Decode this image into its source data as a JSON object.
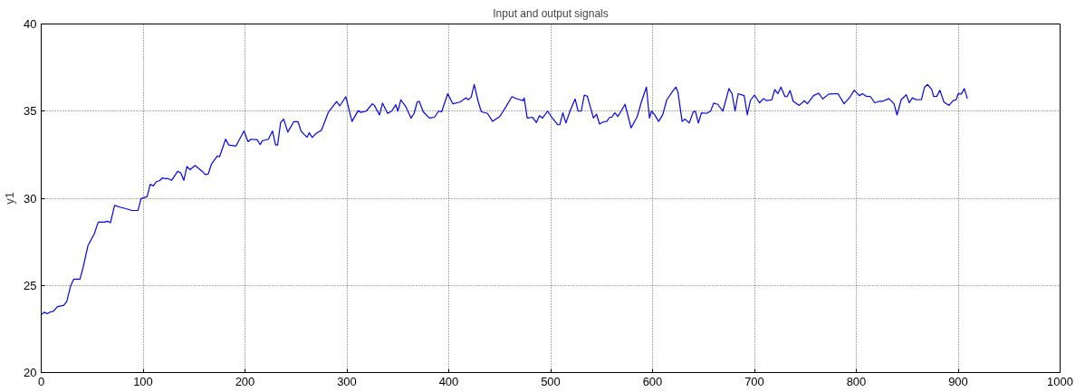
{
  "chart_data": {
    "type": "line",
    "title": "Input and output signals",
    "ylabel": "y1",
    "xlim": [
      0,
      1000
    ],
    "xticks": [
      0,
      100,
      200,
      300,
      400,
      500,
      600,
      700,
      800,
      900,
      1000
    ],
    "ylim": [
      20,
      40
    ],
    "yticks": [
      20,
      25,
      30,
      35,
      40
    ],
    "grid": true,
    "line_style": "solid",
    "series": [
      {
        "color": "#0000ff",
        "x": [
          0,
          3,
          6,
          9,
          12,
          16,
          22,
          25,
          29,
          32,
          38,
          41,
          46,
          52,
          56,
          62,
          65,
          68,
          72,
          78,
          84,
          89,
          95,
          98,
          104,
          107,
          110,
          113,
          116,
          119,
          122,
          124,
          128,
          134,
          137,
          140,
          143,
          146,
          151,
          158,
          161,
          164,
          167,
          173,
          175,
          181,
          184,
          191,
          199,
          203,
          206,
          212,
          215,
          217,
          223,
          227,
          230,
          232,
          235,
          238,
          242,
          248,
          252,
          255,
          258,
          261,
          263,
          266,
          270,
          275,
          282,
          290,
          293,
          299,
          305,
          311,
          314,
          319,
          325,
          327,
          332,
          335,
          340,
          344,
          348,
          350,
          353,
          358,
          363,
          366,
          369,
          371,
          375,
          381,
          386,
          390,
          393,
          399,
          404,
          411,
          417,
          419,
          422,
          425,
          429,
          432,
          438,
          443,
          450,
          456,
          462,
          467,
          473,
          474,
          477,
          482,
          486,
          489,
          492,
          497,
          501,
          507,
          509,
          512,
          515,
          519,
          524,
          527,
          530,
          533,
          536,
          542,
          545,
          548,
          552,
          555,
          558,
          560,
          563,
          566,
          573,
          579,
          585,
          589,
          594,
          597,
          599,
          602,
          606,
          610,
          614,
          620,
          623,
          625,
          629,
          632,
          636,
          640,
          642,
          645,
          648,
          653,
          657,
          660,
          664,
          669,
          675,
          678,
          681,
          684,
          690,
          693,
          696,
          700,
          705,
          709,
          712,
          717,
          720,
          723,
          726,
          730,
          732,
          735,
          738,
          744,
          749,
          752,
          758,
          763,
          767,
          773,
          782,
          788,
          794,
          798,
          803,
          806,
          810,
          814,
          818,
          823,
          826,
          832,
          837,
          840,
          844,
          849,
          852,
          855,
          859,
          864,
          867,
          870,
          874,
          876,
          879,
          882,
          886,
          891,
          895,
          898,
          900,
          903,
          906,
          909
        ],
        "values": [
          23.33,
          23.46,
          23.38,
          23.48,
          23.51,
          23.79,
          23.85,
          24.07,
          24.99,
          25.36,
          25.36,
          26.0,
          27.3,
          27.95,
          28.63,
          28.63,
          28.68,
          28.6,
          29.59,
          29.48,
          29.39,
          29.3,
          29.3,
          29.98,
          30.1,
          30.8,
          30.71,
          30.96,
          31.0,
          31.17,
          31.12,
          31.14,
          31.03,
          31.55,
          31.45,
          31.03,
          31.82,
          31.64,
          31.88,
          31.55,
          31.36,
          31.4,
          31.95,
          32.43,
          32.38,
          33.39,
          33.06,
          32.99,
          33.86,
          33.25,
          33.39,
          33.36,
          33.08,
          33.3,
          33.39,
          33.86,
          33.06,
          33.06,
          34.35,
          34.54,
          33.8,
          34.4,
          34.4,
          33.86,
          33.67,
          33.5,
          33.76,
          33.49,
          33.73,
          33.9,
          34.96,
          35.55,
          35.3,
          35.83,
          34.41,
          35.02,
          34.93,
          35.0,
          35.42,
          35.33,
          34.78,
          35.46,
          34.87,
          35.0,
          35.37,
          35.0,
          35.65,
          35.24,
          34.6,
          34.87,
          35.52,
          35.57,
          34.96,
          34.6,
          34.65,
          35.0,
          34.96,
          36.0,
          35.42,
          35.52,
          35.76,
          35.65,
          35.8,
          36.53,
          35.52,
          34.96,
          34.87,
          34.41,
          34.69,
          35.24,
          35.83,
          35.7,
          35.6,
          35.76,
          34.6,
          34.65,
          34.35,
          34.74,
          34.6,
          35.0,
          34.65,
          34.22,
          34.22,
          34.9,
          34.32,
          35.0,
          35.7,
          35.0,
          35.0,
          35.92,
          35.85,
          34.6,
          34.83,
          34.26,
          34.39,
          34.41,
          34.65,
          34.65,
          34.9,
          34.69,
          35.39,
          34.04,
          34.69,
          35.52,
          36.38,
          34.6,
          35.0,
          34.8,
          34.41,
          34.8,
          35.65,
          36.16,
          36.38,
          36.07,
          34.41,
          34.54,
          34.32,
          34.96,
          35.0,
          34.32,
          34.9,
          34.87,
          35.0,
          35.46,
          35.39,
          35.0,
          36.29,
          36.0,
          35.0,
          36.0,
          35.89,
          34.78,
          35.61,
          35.92,
          35.48,
          35.72,
          35.6,
          35.65,
          36.24,
          36.0,
          36.38,
          35.83,
          35.83,
          36.18,
          35.57,
          35.33,
          35.6,
          35.42,
          35.89,
          36.03,
          35.7,
          35.98,
          36.0,
          35.42,
          35.83,
          36.2,
          35.89,
          36.0,
          35.85,
          35.83,
          35.48,
          35.57,
          35.57,
          35.72,
          35.42,
          34.78,
          35.65,
          35.94,
          35.48,
          35.76,
          35.65,
          35.67,
          36.38,
          36.53,
          36.24,
          35.83,
          35.85,
          36.2,
          35.52,
          35.33,
          35.6,
          35.65,
          36.0,
          35.98,
          36.29,
          35.72
        ]
      }
    ]
  }
}
